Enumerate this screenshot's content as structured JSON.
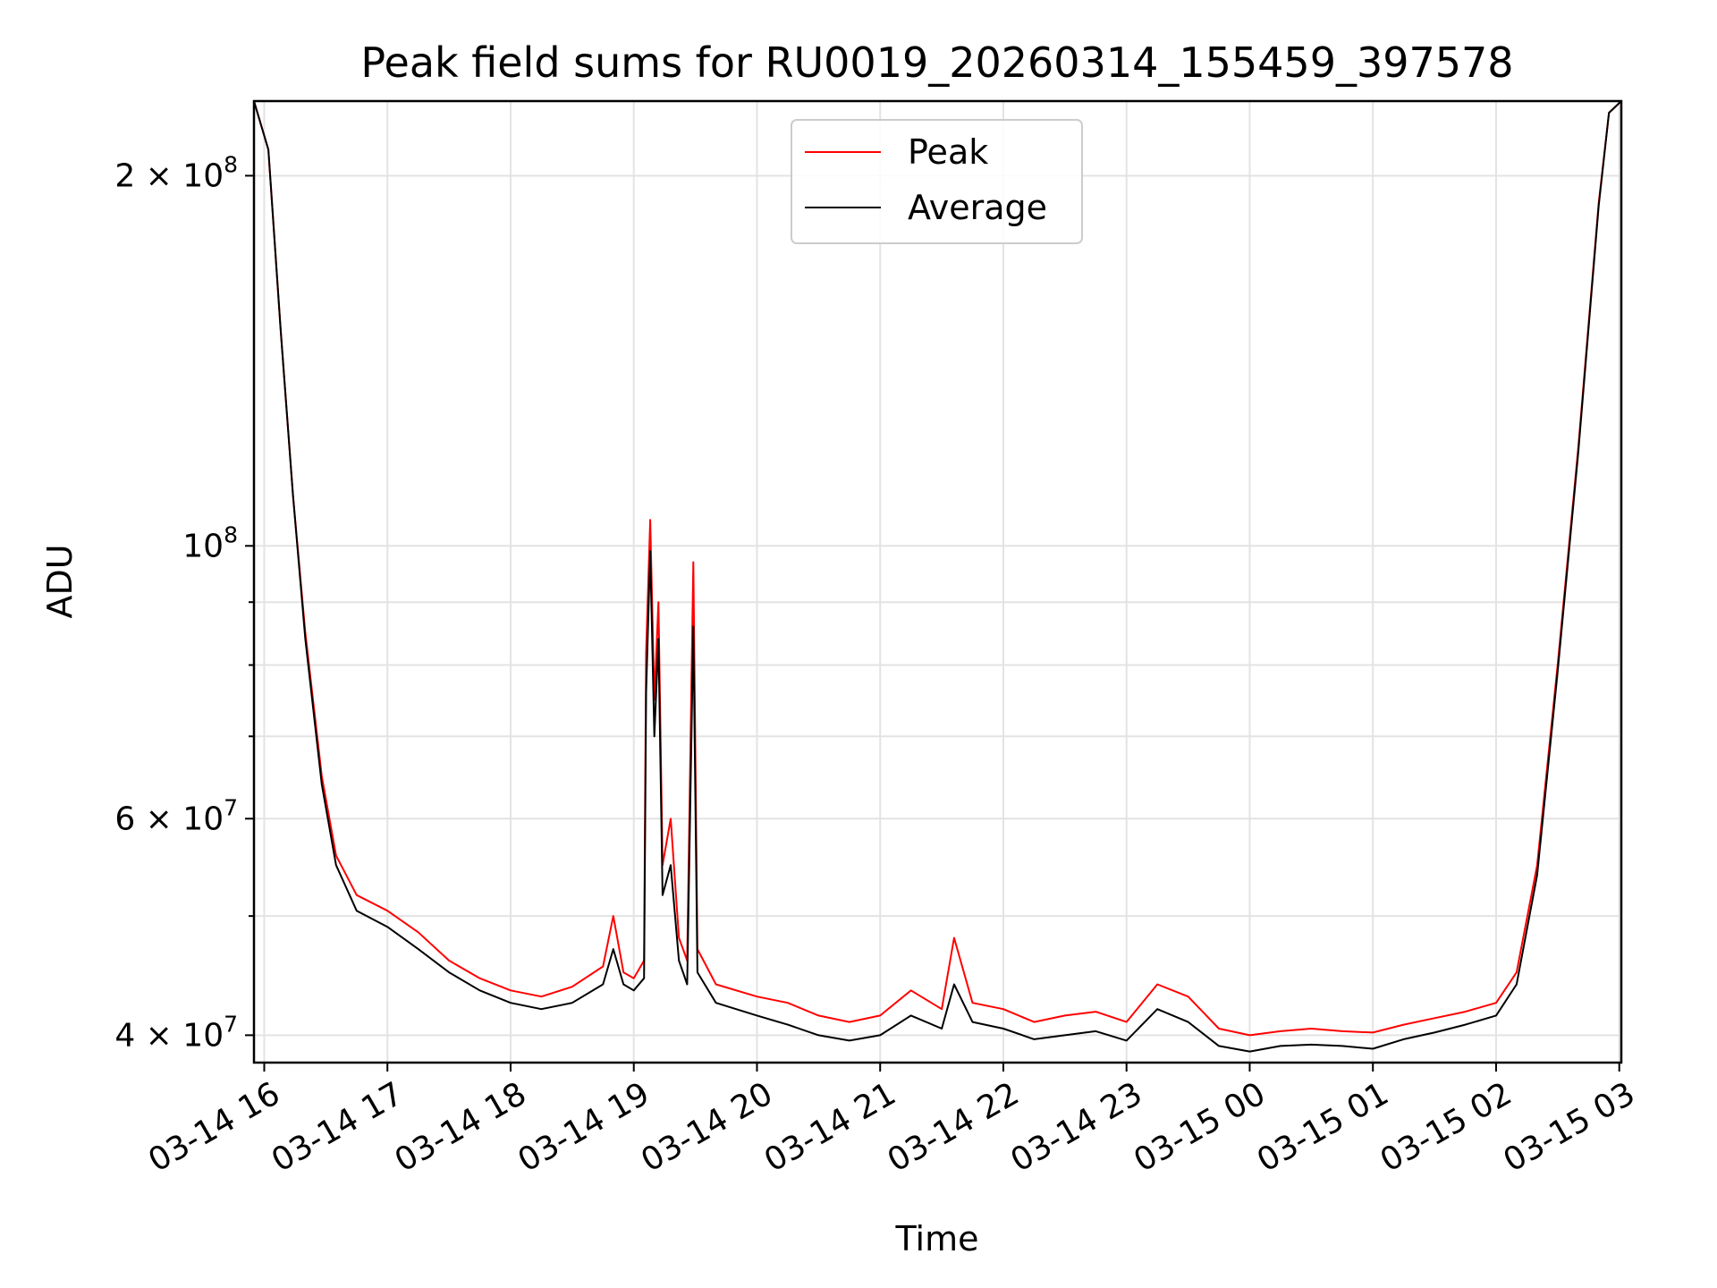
{
  "chart_data": {
    "type": "line",
    "title": "Peak field sums for RU0019_20260314_155459_397578",
    "xlabel": "Time",
    "ylabel": "ADU",
    "y_scale": "log",
    "ylim": [
      38000000,
      230000000
    ],
    "xlim": [
      "2026-03-14 15:55",
      "2026-03-15 03:01"
    ],
    "grid": true,
    "legend_placement": "upper-center",
    "x_ticks": [
      {
        "t": "2026-03-14 16:00",
        "label": "03-14 16"
      },
      {
        "t": "2026-03-14 17:00",
        "label": "03-14 17"
      },
      {
        "t": "2026-03-14 18:00",
        "label": "03-14 18"
      },
      {
        "t": "2026-03-14 19:00",
        "label": "03-14 19"
      },
      {
        "t": "2026-03-14 20:00",
        "label": "03-14 20"
      },
      {
        "t": "2026-03-14 21:00",
        "label": "03-14 21"
      },
      {
        "t": "2026-03-14 22:00",
        "label": "03-14 22"
      },
      {
        "t": "2026-03-14 23:00",
        "label": "03-14 23"
      },
      {
        "t": "2026-03-15 00:00",
        "label": "03-15 00"
      },
      {
        "t": "2026-03-15 01:00",
        "label": "03-15 01"
      },
      {
        "t": "2026-03-15 02:00",
        "label": "03-15 02"
      },
      {
        "t": "2026-03-15 03:00",
        "label": "03-15 03"
      }
    ],
    "y_major_ticks": [
      {
        "value": 40000000,
        "mantissa": "4",
        "exp": "7"
      },
      {
        "value": 60000000,
        "mantissa": "6",
        "exp": "7"
      },
      {
        "value": 100000000,
        "mantissa": "",
        "exp": "8"
      },
      {
        "value": 200000000,
        "mantissa": "2",
        "exp": "8"
      }
    ],
    "y_minor_ticks": [
      50000000,
      70000000,
      80000000,
      90000000
    ],
    "series": [
      {
        "name": "Peak",
        "color": "#ff0000",
        "points": [
          [
            "2026-03-14 15:55",
            230000000
          ],
          [
            "2026-03-14 16:02",
            210000000
          ],
          [
            "2026-03-14 16:08",
            150000000
          ],
          [
            "2026-03-14 16:14",
            110000000
          ],
          [
            "2026-03-14 16:20",
            85000000
          ],
          [
            "2026-03-14 16:28",
            65000000
          ],
          [
            "2026-03-14 16:35",
            56000000
          ],
          [
            "2026-03-14 16:45",
            52000000
          ],
          [
            "2026-03-14 17:00",
            50500000
          ],
          [
            "2026-03-14 17:15",
            48500000
          ],
          [
            "2026-03-14 17:30",
            46000000
          ],
          [
            "2026-03-14 17:45",
            44500000
          ],
          [
            "2026-03-14 18:00",
            43500000
          ],
          [
            "2026-03-14 18:15",
            43000000
          ],
          [
            "2026-03-14 18:30",
            43800000
          ],
          [
            "2026-03-14 18:45",
            45500000
          ],
          [
            "2026-03-14 18:50",
            50000000
          ],
          [
            "2026-03-14 18:55",
            45000000
          ],
          [
            "2026-03-14 19:00",
            44500000
          ],
          [
            "2026-03-14 19:05",
            46000000
          ],
          [
            "2026-03-14 19:06",
            82000000
          ],
          [
            "2026-03-14 19:08",
            105000000
          ],
          [
            "2026-03-14 19:10",
            75000000
          ],
          [
            "2026-03-14 19:12",
            90000000
          ],
          [
            "2026-03-14 19:14",
            55000000
          ],
          [
            "2026-03-14 19:18",
            60000000
          ],
          [
            "2026-03-14 19:22",
            48000000
          ],
          [
            "2026-03-14 19:26",
            46000000
          ],
          [
            "2026-03-14 19:29",
            97000000
          ],
          [
            "2026-03-14 19:31",
            47000000
          ],
          [
            "2026-03-14 19:40",
            44000000
          ],
          [
            "2026-03-14 20:00",
            43000000
          ],
          [
            "2026-03-14 20:15",
            42500000
          ],
          [
            "2026-03-14 20:30",
            41500000
          ],
          [
            "2026-03-14 20:45",
            41000000
          ],
          [
            "2026-03-14 21:00",
            41500000
          ],
          [
            "2026-03-14 21:15",
            43500000
          ],
          [
            "2026-03-14 21:30",
            42000000
          ],
          [
            "2026-03-14 21:36",
            48000000
          ],
          [
            "2026-03-14 21:45",
            42500000
          ],
          [
            "2026-03-14 22:00",
            42000000
          ],
          [
            "2026-03-14 22:15",
            41000000
          ],
          [
            "2026-03-14 22:30",
            41500000
          ],
          [
            "2026-03-14 22:45",
            41800000
          ],
          [
            "2026-03-14 23:00",
            41000000
          ],
          [
            "2026-03-14 23:15",
            44000000
          ],
          [
            "2026-03-14 23:30",
            43000000
          ],
          [
            "2026-03-14 23:45",
            40500000
          ],
          [
            "2026-03-15 00:00",
            40000000
          ],
          [
            "2026-03-15 00:15",
            40300000
          ],
          [
            "2026-03-15 00:30",
            40500000
          ],
          [
            "2026-03-15 00:45",
            40300000
          ],
          [
            "2026-03-15 01:00",
            40200000
          ],
          [
            "2026-03-15 01:15",
            40800000
          ],
          [
            "2026-03-15 01:30",
            41300000
          ],
          [
            "2026-03-15 01:45",
            41800000
          ],
          [
            "2026-03-15 02:00",
            42500000
          ],
          [
            "2026-03-15 02:10",
            45000000
          ],
          [
            "2026-03-15 02:20",
            55000000
          ],
          [
            "2026-03-15 02:30",
            80000000
          ],
          [
            "2026-03-15 02:40",
            120000000
          ],
          [
            "2026-03-15 02:50",
            190000000
          ],
          [
            "2026-03-15 02:55",
            225000000
          ],
          [
            "2026-03-15 03:01",
            230000000
          ]
        ]
      },
      {
        "name": "Average",
        "color": "#000000",
        "points": [
          [
            "2026-03-14 15:55",
            230000000
          ],
          [
            "2026-03-14 16:02",
            210000000
          ],
          [
            "2026-03-14 16:08",
            150000000
          ],
          [
            "2026-03-14 16:14",
            110000000
          ],
          [
            "2026-03-14 16:20",
            84000000
          ],
          [
            "2026-03-14 16:28",
            64000000
          ],
          [
            "2026-03-14 16:35",
            55000000
          ],
          [
            "2026-03-14 16:45",
            50500000
          ],
          [
            "2026-03-14 17:00",
            49000000
          ],
          [
            "2026-03-14 17:15",
            47000000
          ],
          [
            "2026-03-14 17:30",
            45000000
          ],
          [
            "2026-03-14 17:45",
            43500000
          ],
          [
            "2026-03-14 18:00",
            42500000
          ],
          [
            "2026-03-14 18:15",
            42000000
          ],
          [
            "2026-03-14 18:30",
            42500000
          ],
          [
            "2026-03-14 18:45",
            44000000
          ],
          [
            "2026-03-14 18:50",
            47000000
          ],
          [
            "2026-03-14 18:55",
            44000000
          ],
          [
            "2026-03-14 19:00",
            43500000
          ],
          [
            "2026-03-14 19:05",
            44500000
          ],
          [
            "2026-03-14 19:06",
            76000000
          ],
          [
            "2026-03-14 19:08",
            99000000
          ],
          [
            "2026-03-14 19:10",
            70000000
          ],
          [
            "2026-03-14 19:12",
            84000000
          ],
          [
            "2026-03-14 19:14",
            52000000
          ],
          [
            "2026-03-14 19:18",
            55000000
          ],
          [
            "2026-03-14 19:22",
            46000000
          ],
          [
            "2026-03-14 19:26",
            44000000
          ],
          [
            "2026-03-14 19:29",
            86000000
          ],
          [
            "2026-03-14 19:31",
            45000000
          ],
          [
            "2026-03-14 19:40",
            42500000
          ],
          [
            "2026-03-14 20:00",
            41500000
          ],
          [
            "2026-03-14 20:15",
            40800000
          ],
          [
            "2026-03-14 20:30",
            40000000
          ],
          [
            "2026-03-14 20:45",
            39600000
          ],
          [
            "2026-03-14 21:00",
            40000000
          ],
          [
            "2026-03-14 21:15",
            41500000
          ],
          [
            "2026-03-14 21:30",
            40500000
          ],
          [
            "2026-03-14 21:36",
            44000000
          ],
          [
            "2026-03-14 21:45",
            41000000
          ],
          [
            "2026-03-14 22:00",
            40500000
          ],
          [
            "2026-03-14 22:15",
            39700000
          ],
          [
            "2026-03-14 22:30",
            40000000
          ],
          [
            "2026-03-14 22:45",
            40300000
          ],
          [
            "2026-03-14 23:00",
            39600000
          ],
          [
            "2026-03-14 23:15",
            42000000
          ],
          [
            "2026-03-14 23:30",
            41000000
          ],
          [
            "2026-03-14 23:45",
            39200000
          ],
          [
            "2026-03-15 00:00",
            38800000
          ],
          [
            "2026-03-15 00:15",
            39200000
          ],
          [
            "2026-03-15 00:30",
            39300000
          ],
          [
            "2026-03-15 00:45",
            39200000
          ],
          [
            "2026-03-15 01:00",
            39000000
          ],
          [
            "2026-03-15 01:15",
            39700000
          ],
          [
            "2026-03-15 01:30",
            40200000
          ],
          [
            "2026-03-15 01:45",
            40800000
          ],
          [
            "2026-03-15 02:00",
            41500000
          ],
          [
            "2026-03-15 02:10",
            44000000
          ],
          [
            "2026-03-15 02:20",
            54000000
          ],
          [
            "2026-03-15 02:30",
            79000000
          ],
          [
            "2026-03-15 02:40",
            119000000
          ],
          [
            "2026-03-15 02:50",
            189000000
          ],
          [
            "2026-03-15 02:55",
            225000000
          ],
          [
            "2026-03-15 03:01",
            230000000
          ]
        ]
      }
    ]
  }
}
